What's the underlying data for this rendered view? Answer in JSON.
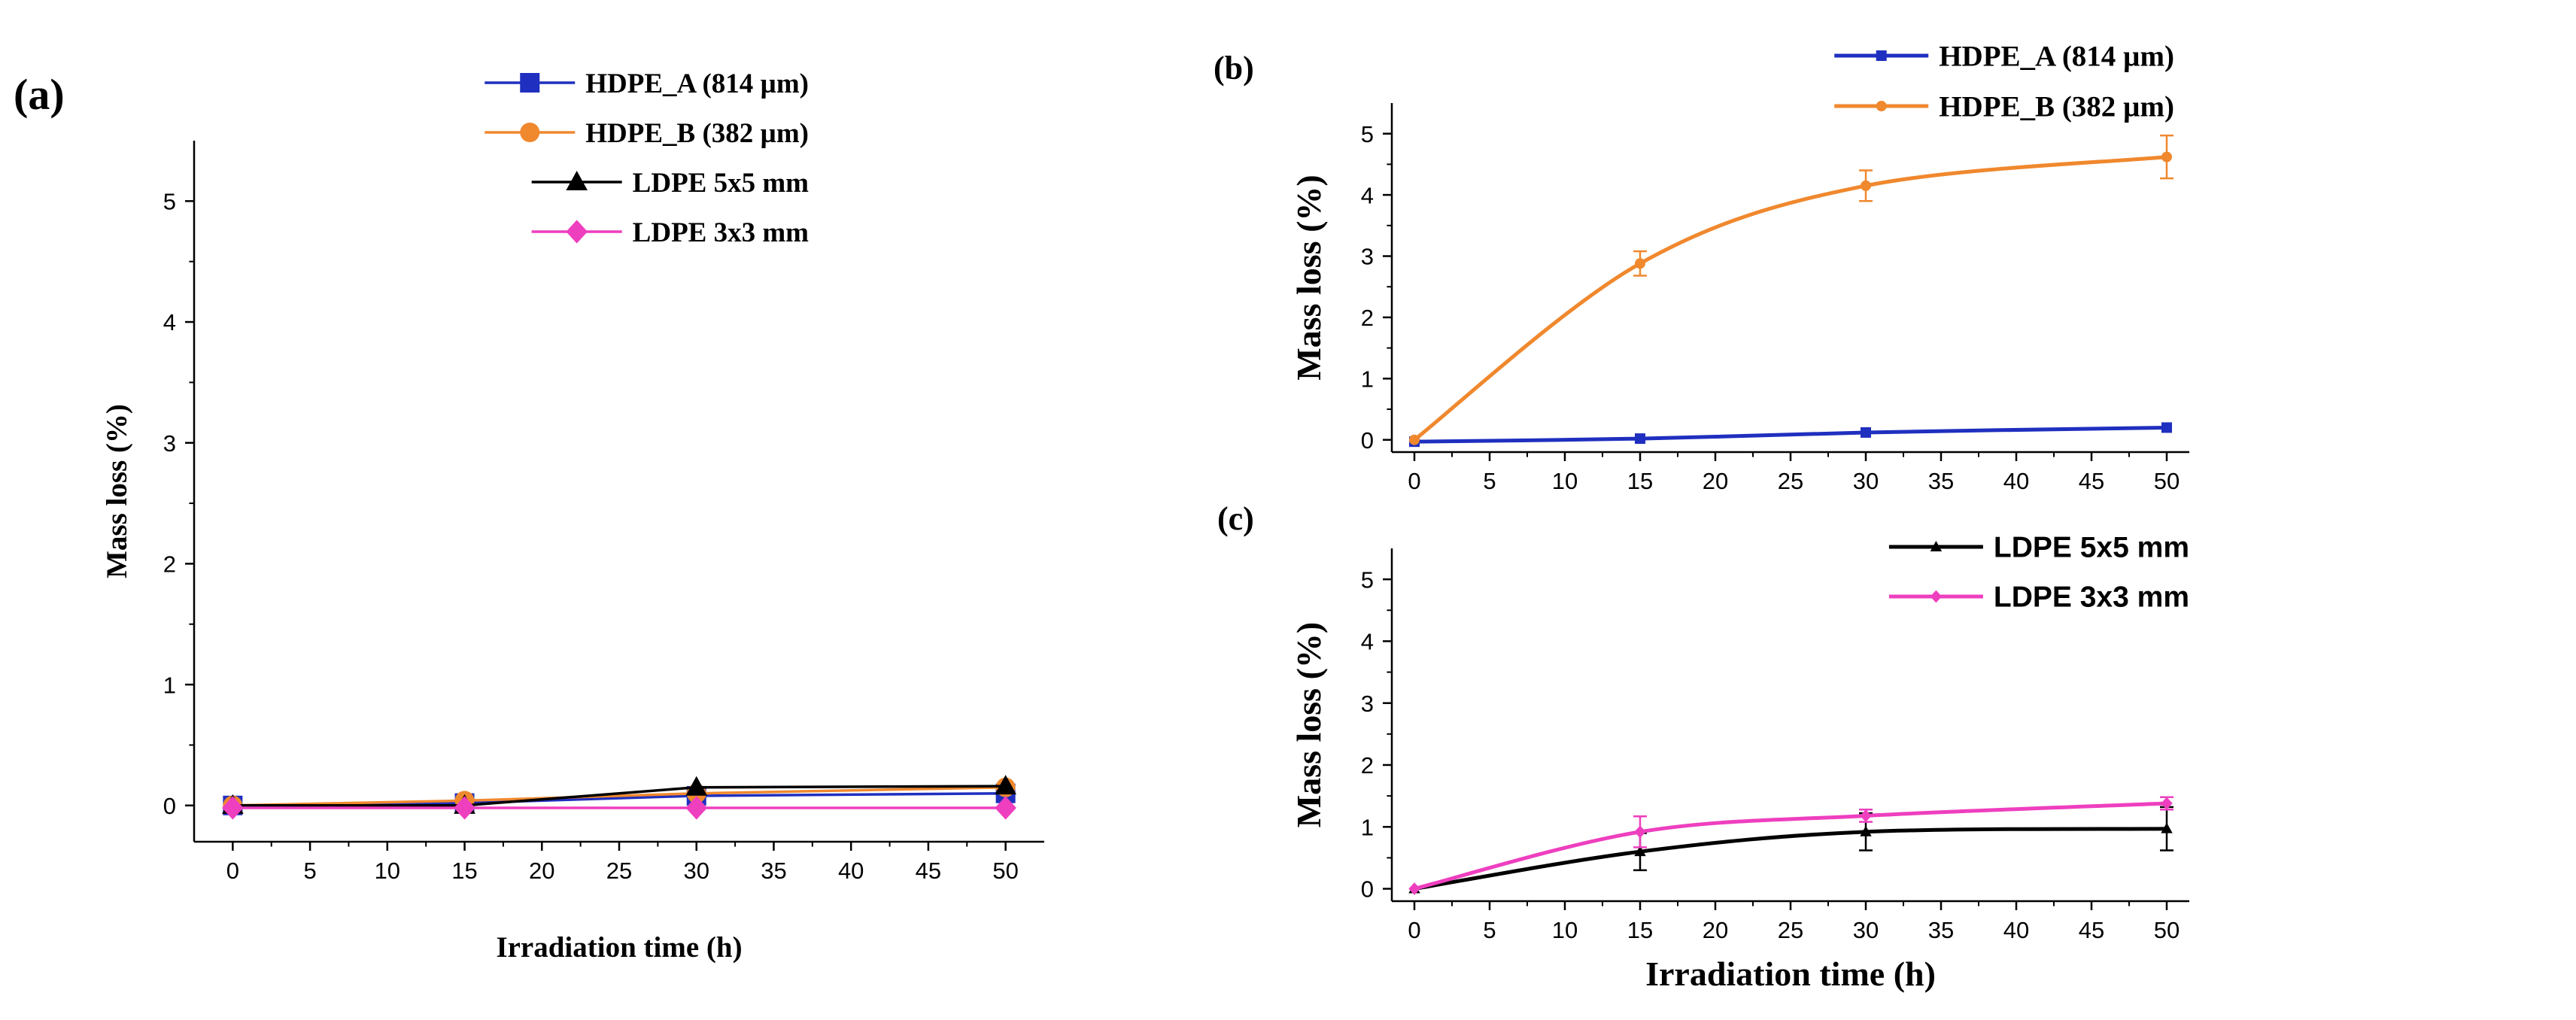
{
  "chart_data": [
    {
      "panel": "(a)",
      "type": "line",
      "xlabel": "Irradiation time (h)",
      "ylabel": "Mass loss (%)",
      "xlim": [
        -2.5,
        52.5
      ],
      "ylim": [
        -0.3,
        5.5
      ],
      "xticks": [
        0,
        5,
        10,
        15,
        20,
        25,
        30,
        35,
        40,
        45,
        50
      ],
      "yticks": [
        0,
        1,
        2,
        3,
        4,
        5
      ],
      "x": [
        0,
        15,
        30,
        50
      ],
      "legend_position": "top-right",
      "series": [
        {
          "name": "HDPE_A (814 µm)",
          "color": "#1f2fbf",
          "marker": "square",
          "values": [
            0,
            0.02,
            0.08,
            0.1
          ],
          "errors": [
            0,
            0,
            0,
            0
          ]
        },
        {
          "name": "HDPE_B (382 µm)",
          "color": "#f0882e",
          "marker": "circle",
          "values": [
            0,
            0.04,
            0.1,
            0.15
          ],
          "errors": [
            0,
            0,
            0,
            0
          ]
        },
        {
          "name": "LDPE 5x5 mm",
          "color": "#000000",
          "marker": "triangle",
          "values": [
            0,
            0,
            0.15,
            0.16
          ],
          "errors": [
            0,
            0,
            0,
            0
          ]
        },
        {
          "name": "LDPE 3x3 mm",
          "color": "#ee3fbf",
          "marker": "diamond",
          "values": [
            -0.02,
            -0.02,
            -0.02,
            -0.02
          ],
          "errors": [
            0,
            0,
            0,
            0
          ]
        }
      ]
    },
    {
      "panel": "(b)",
      "type": "line",
      "xlabel": "",
      "ylabel": "Mass loss (%)",
      "xlim": [
        -1.5,
        51.5
      ],
      "ylim": [
        -0.2,
        5.5
      ],
      "xticks": [
        0,
        5,
        10,
        15,
        20,
        25,
        30,
        35,
        40,
        45,
        50
      ],
      "yticks": [
        0,
        1,
        2,
        3,
        4,
        5
      ],
      "x": [
        0,
        15,
        30,
        50
      ],
      "legend_position": "top-right",
      "series": [
        {
          "name": "HDPE_A (814 µm)",
          "color": "#1f2fbf",
          "marker": "square",
          "values": [
            -0.03,
            0.02,
            0.12,
            0.2
          ],
          "errors": [
            0,
            0,
            0,
            0
          ]
        },
        {
          "name": "HDPE_B (382 µm)",
          "color": "#f0882e",
          "marker": "circle",
          "values": [
            0,
            2.88,
            4.15,
            4.62
          ],
          "errors": [
            0,
            0.2,
            0.25,
            0.35
          ]
        }
      ]
    },
    {
      "panel": "(c)",
      "type": "line",
      "xlabel": "Irradiation time (h)",
      "ylabel": "Mass loss (%)",
      "xlim": [
        -1.5,
        51.5
      ],
      "ylim": [
        -0.2,
        5.5
      ],
      "xticks": [
        0,
        5,
        10,
        15,
        20,
        25,
        30,
        35,
        40,
        45,
        50
      ],
      "yticks": [
        0,
        1,
        2,
        3,
        4,
        5
      ],
      "x": [
        0,
        15,
        30,
        50
      ],
      "legend_position": "top-right",
      "series": [
        {
          "name": "LDPE 5x5 mm",
          "color": "#000000",
          "marker": "triangle",
          "values": [
            0,
            0.6,
            0.92,
            0.97
          ],
          "errors": [
            0,
            0.3,
            0.3,
            0.35
          ]
        },
        {
          "name": "LDPE 3x3 mm",
          "color": "#ee3fbf",
          "marker": "diamond",
          "values": [
            0,
            0.92,
            1.18,
            1.38
          ],
          "errors": [
            0,
            0.25,
            0.1,
            0.1
          ]
        }
      ]
    }
  ]
}
